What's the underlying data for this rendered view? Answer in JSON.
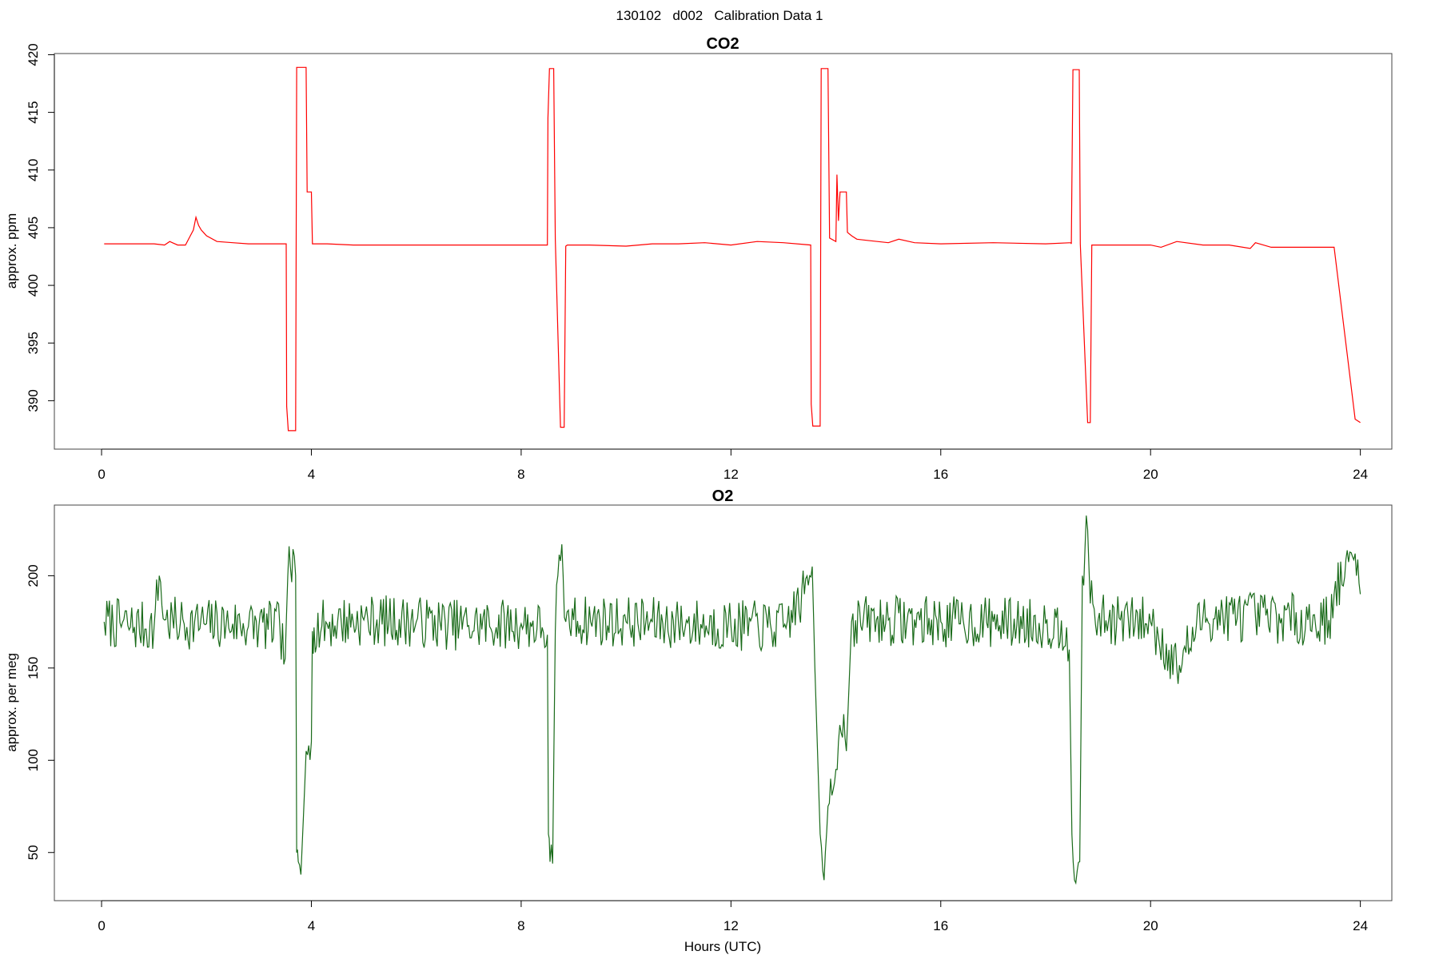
{
  "figure": {
    "title": "130102   d002   Calibration Data 1"
  },
  "chart_data": [
    {
      "type": "line",
      "title": "CO2",
      "xlabel": "",
      "ylabel": "approx. ppm",
      "xlim": [
        -0.9,
        24.6
      ],
      "ylim": [
        385.8,
        420.1
      ],
      "x_ticks": [
        0,
        4,
        8,
        12,
        16,
        20,
        24
      ],
      "y_ticks": [
        390,
        395,
        400,
        405,
        410,
        415,
        420
      ],
      "grid": false,
      "color": "#ff0000",
      "series": [
        {
          "x": [
            0.05,
            0.4,
            0.8,
            1.0,
            1.2,
            1.3,
            1.35,
            1.45,
            1.6,
            1.68,
            1.75,
            1.8,
            1.85,
            1.9,
            2.0,
            2.2,
            2.5,
            2.8,
            3.2,
            3.52,
            3.53,
            3.56,
            3.58,
            3.7,
            3.72,
            3.9,
            3.92,
            4.0,
            4.02,
            4.05,
            4.3,
            4.8,
            5.5,
            6.5,
            7.5,
            8.2,
            8.5,
            8.51,
            8.54,
            8.56,
            8.62,
            8.65,
            8.75,
            8.78,
            8.82,
            8.85,
            8.88,
            9.3,
            10.0,
            10.5,
            11.0,
            11.5,
            12.0,
            12.5,
            13.0,
            13.52,
            13.53,
            13.56,
            13.58,
            13.7,
            13.72,
            13.85,
            13.88,
            14.0,
            14.02,
            14.05,
            14.08,
            14.1,
            14.2,
            14.22,
            14.3,
            14.4,
            14.6,
            15.0,
            15.2,
            15.5,
            16.0,
            17.0,
            18.0,
            18.48,
            18.49,
            18.52,
            18.54,
            18.64,
            18.66,
            18.8,
            18.82,
            18.85,
            18.88,
            19.5,
            20.0,
            20.2,
            20.5,
            21.0,
            21.5,
            21.9,
            22.0,
            22.3,
            22.7,
            23.0,
            23.4,
            23.5,
            23.9,
            24.0
          ],
          "y": [
            403.6,
            403.6,
            403.6,
            403.6,
            403.5,
            403.8,
            403.7,
            403.5,
            403.5,
            404.2,
            404.8,
            405.9,
            405.2,
            404.8,
            404.3,
            403.8,
            403.7,
            403.6,
            403.6,
            403.6,
            389.5,
            387.4,
            387.4,
            387.4,
            418.9,
            418.9,
            408.1,
            408.1,
            403.6,
            403.6,
            403.6,
            403.5,
            403.5,
            403.5,
            403.5,
            403.5,
            403.5,
            414.5,
            418.8,
            418.8,
            418.8,
            404.0,
            387.7,
            387.7,
            387.7,
            403.4,
            403.5,
            403.5,
            403.4,
            403.6,
            403.6,
            403.7,
            403.5,
            403.8,
            403.7,
            403.5,
            389.7,
            387.8,
            387.8,
            387.8,
            418.8,
            418.8,
            404.1,
            403.8,
            409.6,
            405.6,
            408.1,
            408.1,
            408.1,
            404.6,
            404.3,
            404.0,
            403.9,
            403.7,
            404.0,
            403.7,
            403.6,
            403.7,
            403.6,
            403.7,
            403.6,
            418.7,
            418.7,
            418.7,
            403.6,
            388.1,
            388.1,
            388.1,
            403.5,
            403.5,
            403.5,
            403.3,
            403.8,
            403.5,
            403.5,
            403.2,
            403.7,
            403.3,
            403.3,
            403.3,
            403.3,
            403.3,
            388.4,
            388.1
          ]
        }
      ]
    },
    {
      "type": "line",
      "title": "O2",
      "xlabel": "Hours (UTC)",
      "ylabel": "approx. per meg",
      "xlim": [
        -0.9,
        24.6
      ],
      "ylim": [
        23.9,
        238.3
      ],
      "x_ticks": [
        0,
        4,
        8,
        12,
        16,
        20,
        24
      ],
      "y_ticks": [
        50,
        100,
        150,
        200
      ],
      "grid": false,
      "color": "#1a6b1a",
      "series": [
        {
          "noise_seed": 7,
          "noise_amplitude": 14,
          "x": [
            0.05,
            0.5,
            1.0,
            1.1,
            1.2,
            1.5,
            2.0,
            2.5,
            3.0,
            3.4,
            3.5,
            3.55,
            3.6,
            3.7,
            3.72,
            3.75,
            3.8,
            3.85,
            3.9,
            3.95,
            4.0,
            4.02,
            4.05,
            4.5,
            5.0,
            6.0,
            7.0,
            8.0,
            8.4,
            8.5,
            8.52,
            8.55,
            8.6,
            8.65,
            8.7,
            8.75,
            8.8,
            8.85,
            9.0,
            10.0,
            11.0,
            12.0,
            13.0,
            13.4,
            13.5,
            13.55,
            13.6,
            13.7,
            13.75,
            13.8,
            13.85,
            13.9,
            14.0,
            14.05,
            14.1,
            14.15,
            14.2,
            14.3,
            15.0,
            16.0,
            17.0,
            18.0,
            18.4,
            18.45,
            18.5,
            18.55,
            18.6,
            18.65,
            18.7,
            18.75,
            18.8,
            18.85,
            19.0,
            20.0,
            20.5,
            21.0,
            22.0,
            22.5,
            23.0,
            23.4,
            23.5,
            23.9,
            24.0
          ],
          "y": [
            175,
            173,
            172,
            200,
            176,
            174,
            174,
            174,
            173,
            172,
            155,
            200,
            205,
            200,
            50,
            45,
            38,
            70,
            105,
            108,
            110,
            170,
            172,
            175,
            176,
            175,
            173,
            174,
            172,
            168,
            60,
            45,
            44,
            170,
            200,
            208,
            200,
            175,
            176,
            175,
            174,
            173,
            172,
            190,
            200,
            205,
            150,
            60,
            40,
            50,
            75,
            90,
            95,
            110,
            115,
            125,
            105,
            175,
            176,
            175,
            175,
            174,
            172,
            160,
            60,
            35,
            40,
            45,
            200,
            215,
            225,
            185,
            176,
            175,
            150,
            178,
            178,
            177,
            176,
            176,
            190,
            212,
            190
          ]
        }
      ]
    }
  ]
}
